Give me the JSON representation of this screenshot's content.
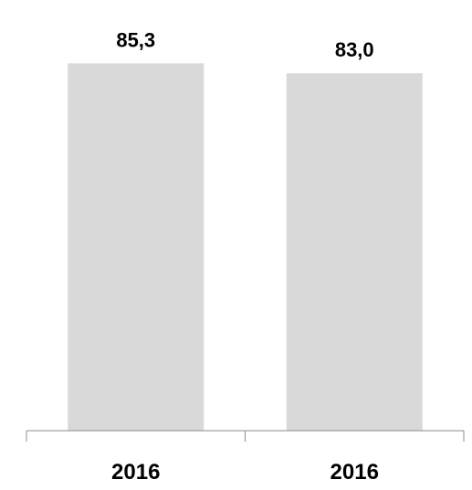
{
  "chart_data": {
    "type": "bar",
    "categories": [
      "2016",
      "2016"
    ],
    "values": [
      85.3,
      83.0
    ],
    "value_labels": [
      "85,3",
      "83,0"
    ],
    "title": "",
    "xlabel": "",
    "ylabel": "",
    "ylim": [
      0,
      100
    ],
    "grid": false,
    "legend": "none",
    "colors": {
      "bar": "#d9d9d9",
      "axis": "#8c8c8c",
      "text": "#000000"
    }
  }
}
